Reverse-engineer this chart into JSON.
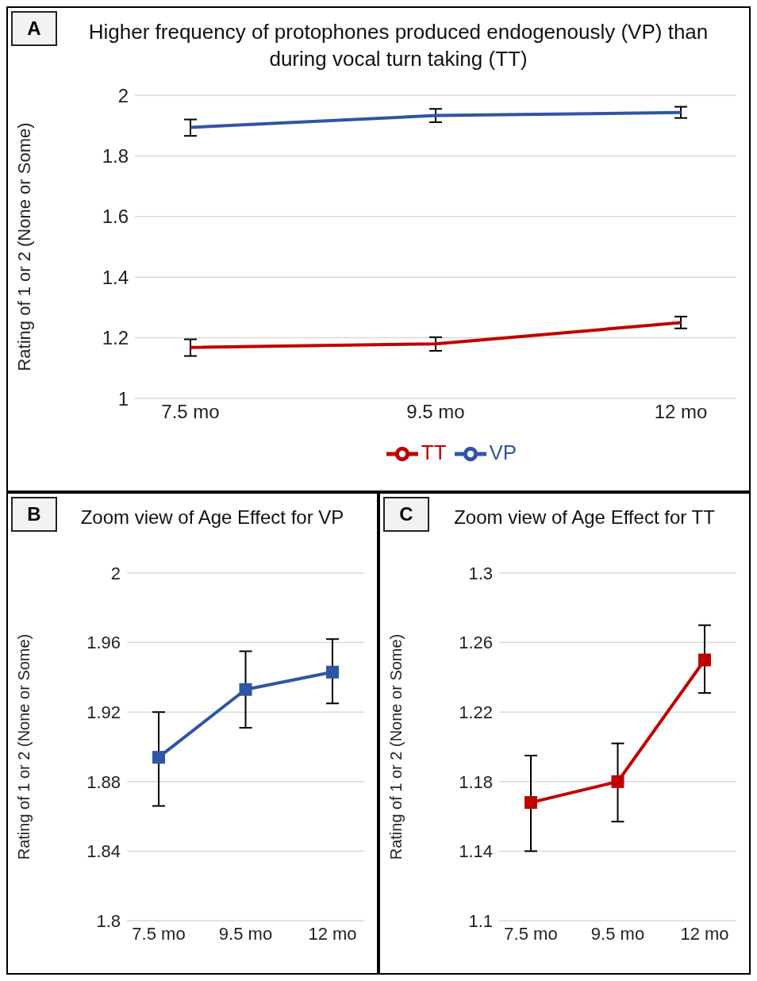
{
  "chart_data": [
    {
      "type": "line",
      "title": "Higher frequency of protophones produced endogenously (VP) than during vocal turn taking (TT)",
      "ylabel": "Rating  of 1 or 2 (None or Some)",
      "annotations": [
        "A"
      ],
      "categories": [
        "7.5 mo",
        "9.5 mo",
        "12 mo"
      ],
      "series": [
        {
          "name": "VP",
          "color": "#2f55a4",
          "values": [
            1.894,
            1.933,
            1.943
          ],
          "errors": [
            [
              1.866,
              1.92
            ],
            [
              1.911,
              1.955
            ],
            [
              1.925,
              1.962
            ]
          ]
        },
        {
          "name": "TT",
          "color": "#c00000",
          "values": [
            1.168,
            1.18,
            1.25
          ],
          "errors": [
            [
              1.14,
              1.195
            ],
            [
              1.157,
              1.202
            ],
            [
              1.231,
              1.27
            ]
          ]
        }
      ],
      "ylim": [
        1,
        2
      ],
      "yticks": [
        1,
        1.2,
        1.4,
        1.6,
        1.8,
        2
      ],
      "grid": "y",
      "legend": "bottom",
      "marker": "none"
    },
    {
      "type": "line",
      "title": "Zoom view of Age Effect for VP",
      "ylabel": "Rating  of 1 or 2 (None or Some)",
      "annotations": [
        "B"
      ],
      "categories": [
        "7.5 mo",
        "9.5 mo",
        "12 mo"
      ],
      "series": [
        {
          "color": "#2f55a4",
          "values": [
            1.894,
            1.933,
            1.943
          ],
          "errors": [
            [
              1.866,
              1.92
            ],
            [
              1.911,
              1.955
            ],
            [
              1.925,
              1.962
            ]
          ]
        }
      ],
      "ylim": [
        1.8,
        2
      ],
      "yticks": [
        1.8,
        1.84,
        1.88,
        1.92,
        1.96,
        2
      ],
      "grid": "y",
      "marker": "square"
    },
    {
      "type": "line",
      "title": "Zoom view of Age Effect for TT",
      "ylabel": "Rating  of 1 or 2 (None or Some)",
      "annotations": [
        "C"
      ],
      "categories": [
        "7.5 mo",
        "9.5 mo",
        "12 mo"
      ],
      "series": [
        {
          "color": "#c00000",
          "values": [
            1.168,
            1.18,
            1.25
          ],
          "errors": [
            [
              1.14,
              1.195
            ],
            [
              1.157,
              1.202
            ],
            [
              1.231,
              1.27
            ]
          ]
        }
      ],
      "ylim": [
        1.1,
        1.3
      ],
      "yticks": [
        1.1,
        1.14,
        1.18,
        1.22,
        1.26,
        1.3
      ],
      "grid": "y",
      "marker": "square"
    }
  ]
}
